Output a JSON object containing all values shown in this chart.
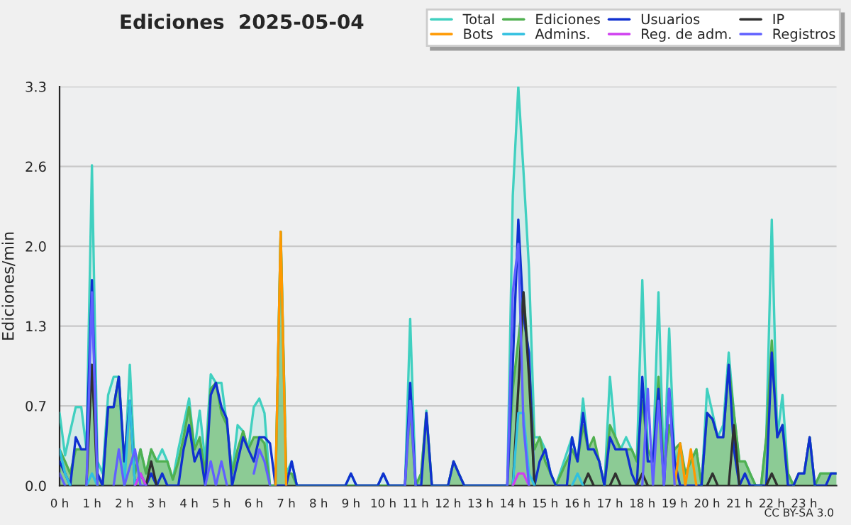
{
  "chart_data": {
    "type": "line",
    "title": "Ediciones  2025-05-04",
    "ylabel": "Ediciones/min",
    "xlim": [
      0,
      24
    ],
    "xticks": [
      {
        "value": 0,
        "label": "0 h"
      },
      {
        "value": 1,
        "label": "1 h"
      },
      {
        "value": 2,
        "label": "2 h"
      },
      {
        "value": 3,
        "label": "3 h"
      },
      {
        "value": 4,
        "label": "4 h"
      },
      {
        "value": 5,
        "label": "5 h"
      },
      {
        "value": 6,
        "label": "6 h"
      },
      {
        "value": 7,
        "label": "7 h"
      },
      {
        "value": 8,
        "label": "8 h"
      },
      {
        "value": 9,
        "label": "9 h"
      },
      {
        "value": 10,
        "label": "10 h"
      },
      {
        "value": 11,
        "label": "11 h"
      },
      {
        "value": 12,
        "label": "12 h"
      },
      {
        "value": 13,
        "label": "13 h"
      },
      {
        "value": 14,
        "label": "14 h"
      },
      {
        "value": 15,
        "label": "15 h"
      },
      {
        "value": 16,
        "label": "16 h"
      },
      {
        "value": 17,
        "label": "17 h"
      },
      {
        "value": 18,
        "label": "18 h"
      },
      {
        "value": 19,
        "label": "19 h"
      },
      {
        "value": 20,
        "label": "20 h"
      },
      {
        "value": 21,
        "label": "21 h"
      },
      {
        "value": 22,
        "label": "22 h"
      },
      {
        "value": 23,
        "label": "23 h"
      }
    ],
    "ylim": [
      0,
      3.3
    ],
    "yticks": [
      {
        "value": 0,
        "label": "0.0"
      },
      {
        "value": 0.66,
        "label": "0.7"
      },
      {
        "value": 1.32,
        "label": "1.3"
      },
      {
        "value": 1.98,
        "label": "2.0"
      },
      {
        "value": 2.64,
        "label": "2.6"
      },
      {
        "value": 3.3,
        "label": "3.3"
      }
    ],
    "grid": "y",
    "legend": "top right",
    "marker": "none",
    "line_style": "solid",
    "annotations": [
      "CC BY-SA 3.0"
    ],
    "series": [
      {
        "name": "Total",
        "type": "area",
        "color": "#40d0c0",
        "x": [
          0,
          0.17,
          0.33,
          0.5,
          0.67,
          0.83,
          1.0,
          1.17,
          1.33,
          1.5,
          1.67,
          1.83,
          2.0,
          2.17,
          2.33,
          2.5,
          2.67,
          2.83,
          3.0,
          3.17,
          3.33,
          3.5,
          3.67,
          3.83,
          4.0,
          4.17,
          4.33,
          4.5,
          4.67,
          4.83,
          5.0,
          5.17,
          5.33,
          5.5,
          5.67,
          5.83,
          6.0,
          6.17,
          6.33,
          6.5,
          6.67,
          6.83,
          7.0,
          7.17,
          7.33,
          8.83,
          9.0,
          9.17,
          9.83,
          10.0,
          10.17,
          10.67,
          10.83,
          11.0,
          11.17,
          11.33,
          11.5,
          12.0,
          12.17,
          12.33,
          12.5,
          13.83,
          14.0,
          14.17,
          14.33,
          14.5,
          14.67,
          14.83,
          15.0,
          15.17,
          15.33,
          15.83,
          16.0,
          16.17,
          16.33,
          16.5,
          16.67,
          16.83,
          17.0,
          17.17,
          17.33,
          17.5,
          17.67,
          17.83,
          18.0,
          18.17,
          18.33,
          18.5,
          18.67,
          18.83,
          19.0,
          19.17,
          19.33,
          19.5,
          19.67,
          19.83,
          20.0,
          20.17,
          20.33,
          20.5,
          20.67,
          20.83,
          21.0,
          21.17,
          21.33,
          21.5,
          21.67,
          21.83,
          22.0,
          22.17,
          22.33,
          22.5,
          22.67,
          22.83,
          23.0,
          23.17,
          23.33,
          23.5,
          23.83,
          24.0
        ],
        "values": [
          0.6,
          0.25,
          0.45,
          0.65,
          0.65,
          0.3,
          2.65,
          0.2,
          0.1,
          0.75,
          0.9,
          0.9,
          0.1,
          1.0,
          0.1,
          0.3,
          0.1,
          0.3,
          0.2,
          0.3,
          0.2,
          0.05,
          0.3,
          0.5,
          0.72,
          0.3,
          0.62,
          0.2,
          0.92,
          0.85,
          0.85,
          0.5,
          0.1,
          0.5,
          0.45,
          0.3,
          0.65,
          0.72,
          0.6,
          0,
          0,
          2.1,
          0.1,
          0.2,
          0,
          0,
          0.1,
          0,
          0,
          0.1,
          0,
          0,
          1.38,
          0,
          0.1,
          0.62,
          0,
          0,
          0.2,
          0.1,
          0,
          0,
          2.4,
          3.3,
          2.6,
          1.8,
          0.4,
          0.4,
          0.3,
          0.1,
          0,
          0.4,
          0.2,
          0.72,
          0.3,
          0.3,
          0.2,
          0,
          0.9,
          0.4,
          0.3,
          0.4,
          0.3,
          0.2,
          1.7,
          0.3,
          0.2,
          1.6,
          0.1,
          1.3,
          0.2,
          0.3,
          0.1,
          0.2,
          0.3,
          0,
          0.8,
          0.6,
          0.4,
          0.5,
          1.1,
          0.6,
          0.2,
          0.2,
          0.1,
          0,
          0,
          0.4,
          2.2,
          0.4,
          0.75,
          0.1,
          0,
          0.1,
          0.1,
          0.4,
          0,
          0.1,
          0.1,
          0.1
        ]
      },
      {
        "name": "Ediciones",
        "type": "area",
        "color": "#50b050",
        "x": [
          0,
          0.17,
          0.33,
          0.5,
          0.67,
          0.83,
          1.0,
          1.17,
          1.33,
          1.5,
          1.67,
          1.83,
          2.0,
          2.17,
          2.33,
          2.5,
          2.67,
          2.83,
          3.0,
          3.17,
          3.33,
          3.5,
          3.67,
          3.83,
          4.0,
          4.17,
          4.33,
          4.5,
          4.67,
          4.83,
          5.0,
          5.17,
          5.33,
          5.5,
          5.67,
          5.83,
          6.0,
          6.17,
          6.33,
          6.5,
          6.67,
          6.83,
          7.0,
          7.17,
          7.33,
          10.67,
          10.83,
          11.0,
          11.17,
          11.33,
          11.5,
          12.0,
          12.17,
          12.33,
          12.5,
          13.83,
          14.0,
          14.17,
          14.33,
          14.5,
          14.67,
          14.83,
          15.0,
          15.17,
          15.33,
          15.83,
          16.0,
          16.17,
          16.33,
          16.5,
          16.67,
          16.83,
          17.0,
          17.17,
          17.33,
          17.5,
          17.67,
          17.83,
          18.0,
          18.17,
          18.33,
          18.5,
          18.67,
          18.83,
          19.0,
          19.17,
          19.33,
          19.5,
          19.67,
          19.83,
          20.0,
          20.17,
          20.33,
          20.5,
          20.67,
          20.83,
          21.0,
          21.17,
          21.33,
          21.5,
          21.67,
          21.83,
          22.0,
          22.17,
          22.33,
          22.5,
          22.67,
          22.83,
          23.0,
          23.17,
          23.33,
          23.5,
          23.83,
          24.0
        ],
        "values": [
          0.3,
          0.2,
          0.1,
          0.3,
          0.3,
          0.3,
          1.0,
          0.1,
          0,
          0.65,
          0.65,
          0.9,
          0.2,
          0.7,
          0.1,
          0.3,
          0.1,
          0.3,
          0.2,
          0.2,
          0.2,
          0.05,
          0.2,
          0.4,
          0.65,
          0.3,
          0.4,
          0.1,
          0.8,
          0.85,
          0.6,
          0.5,
          0.1,
          0.3,
          0.45,
          0.3,
          0.4,
          0.4,
          0.35,
          0,
          0,
          2.1,
          0.1,
          0.1,
          0,
          0,
          0.65,
          0,
          0.1,
          0.6,
          0,
          0,
          0.2,
          0.1,
          0,
          0,
          0.8,
          1.2,
          1.6,
          1.0,
          0.3,
          0.4,
          0.2,
          0.1,
          0,
          0.3,
          0.2,
          0.5,
          0.3,
          0.4,
          0.2,
          0,
          0.5,
          0.4,
          0.3,
          0.3,
          0.3,
          0.2,
          0.7,
          0.3,
          0.2,
          0.9,
          0.1,
          0.5,
          0.3,
          0.35,
          0.1,
          0.2,
          0.3,
          0,
          0.6,
          0.55,
          0.4,
          0.4,
          1.0,
          0.6,
          0.2,
          0.2,
          0.1,
          0,
          0,
          0.4,
          1.2,
          0.4,
          0.5,
          0.1,
          0,
          0.1,
          0.1,
          0.4,
          0,
          0.1,
          0.1,
          0.1
        ]
      },
      {
        "name": "Usuarios",
        "color": "#1030d0",
        "x": [
          0,
          0.17,
          0.33,
          0.5,
          0.67,
          0.83,
          1.0,
          1.17,
          1.33,
          1.5,
          1.67,
          1.83,
          2.0,
          2.17,
          2.33,
          2.5,
          2.67,
          2.83,
          3.0,
          3.17,
          3.33,
          3.67,
          3.83,
          4.0,
          4.17,
          4.33,
          4.5,
          4.67,
          4.83,
          5.0,
          5.17,
          5.33,
          5.5,
          5.67,
          5.83,
          6.0,
          6.17,
          6.33,
          6.5,
          6.67,
          7.0,
          7.17,
          7.33,
          8.83,
          9.0,
          9.17,
          9.83,
          10.0,
          10.17,
          10.67,
          10.83,
          11.0,
          11.17,
          11.33,
          11.5,
          12.0,
          12.17,
          12.33,
          12.5,
          13.83,
          14.0,
          14.17,
          14.33,
          14.5,
          14.67,
          14.83,
          15.0,
          15.17,
          15.33,
          15.67,
          15.83,
          16.0,
          16.17,
          16.33,
          16.5,
          16.67,
          16.83,
          17.0,
          17.17,
          17.33,
          17.5,
          17.67,
          17.83,
          18.0,
          18.17,
          18.33,
          18.5,
          18.67,
          18.83,
          19.0,
          19.17,
          19.83,
          20.0,
          20.17,
          20.33,
          20.5,
          20.67,
          20.83,
          21.0,
          21.17,
          21.33,
          21.67,
          21.83,
          22.0,
          22.17,
          22.33,
          22.5,
          22.67,
          22.83,
          23.0,
          23.17,
          23.33,
          23.67,
          23.83,
          24.0
        ],
        "values": [
          0.2,
          0.1,
          0,
          0.4,
          0.3,
          0.3,
          1.7,
          0.1,
          0,
          0.65,
          0.65,
          0.9,
          0.2,
          0.7,
          0,
          0.1,
          0,
          0.1,
          0,
          0.1,
          0,
          0,
          0.3,
          0.5,
          0.2,
          0.3,
          0,
          0.75,
          0.85,
          0.65,
          0.55,
          0,
          0.2,
          0.4,
          0.3,
          0.2,
          0.4,
          0.4,
          0.35,
          0,
          0,
          0.2,
          0,
          0,
          0.1,
          0,
          0,
          0.1,
          0,
          0,
          0.85,
          0,
          0,
          0.6,
          0,
          0,
          0.2,
          0.1,
          0,
          0,
          1.0,
          2.2,
          1.4,
          1.1,
          0,
          0.2,
          0.3,
          0.1,
          0,
          0,
          0.4,
          0.2,
          0.6,
          0.3,
          0.3,
          0.2,
          0,
          0.4,
          0.3,
          0.3,
          0.3,
          0.1,
          0,
          0.9,
          0.2,
          0.2,
          0.8,
          0,
          0.8,
          0.2,
          0,
          0,
          0.6,
          0.55,
          0.4,
          0.4,
          1.0,
          0.3,
          0,
          0.1,
          0,
          0,
          0,
          1.1,
          0.4,
          0.5,
          0,
          0,
          0.1,
          0.1,
          0.4,
          0,
          0,
          0.1,
          0.1
        ]
      },
      {
        "name": "IP",
        "color": "#303030",
        "x": [
          0.83,
          1.0,
          1.17,
          2,
          2.67,
          2.83,
          3.0,
          8,
          14.0,
          14.17,
          14.33,
          14.5,
          14.67,
          15,
          16.17,
          16.33,
          16.5,
          16.8,
          17.0,
          17.17,
          17.33,
          17.6,
          17.83,
          18.0,
          18.17,
          19,
          20.0,
          20.17,
          20.33,
          20.5,
          20.67,
          20.83,
          21.0,
          21.5,
          21.83,
          22.0,
          22.17
        ],
        "values": [
          0,
          1.0,
          0,
          null,
          0,
          0.2,
          0,
          null,
          0,
          0.8,
          1.6,
          0.9,
          0,
          null,
          0,
          0.1,
          0,
          null,
          0,
          0.1,
          0,
          null,
          0,
          0.1,
          0,
          null,
          0,
          0.1,
          0,
          null,
          0,
          0.5,
          0,
          null,
          0,
          0.1,
          0
        ]
      },
      {
        "name": "Bots",
        "color": "#ff9900",
        "x": [
          6.67,
          6.83,
          7.0,
          12,
          19.0,
          19.17,
          19.33,
          19.5,
          19.67
        ],
        "values": [
          0,
          2.1,
          0,
          null,
          0,
          0.35,
          0,
          0.3,
          0
        ]
      },
      {
        "name": "Admins.",
        "color": "#30c0e0",
        "x": [
          0,
          0.17,
          0.33,
          0.6,
          0.83,
          1.0,
          1.17,
          1.6,
          2.0,
          2.17,
          2.33,
          8,
          14.0,
          14.17,
          14.33,
          14.5,
          14.67,
          15,
          15.83,
          16.0,
          16.17
        ],
        "values": [
          0.3,
          0.1,
          0,
          null,
          0,
          0.1,
          0,
          null,
          0,
          0.7,
          0,
          null,
          0,
          0.6,
          0.6,
          0.1,
          0,
          null,
          0,
          0.1,
          0
        ]
      },
      {
        "name": "Reg. de adm.",
        "color": "#d040f0",
        "x": [
          2.33,
          2.5,
          2.67,
          8,
          14.0,
          14.17,
          14.33,
          14.5
        ],
        "values": [
          0,
          0.1,
          0,
          null,
          0,
          0.1,
          0.1,
          0
        ]
      },
      {
        "name": "Registros",
        "color": "#6060ff",
        "x": [
          0,
          0.17,
          0.5,
          0.83,
          1.0,
          1.17,
          1.4,
          1.67,
          1.83,
          2.0,
          2.33,
          2.5,
          2.67,
          4,
          4.5,
          4.67,
          4.83,
          5.0,
          5.17,
          5.5,
          6.0,
          6.17,
          6.33,
          6.5,
          8,
          10.67,
          10.83,
          11.0,
          12,
          13.83,
          14.0,
          14.17,
          14.33,
          14.5,
          16,
          18.0,
          18.17,
          18.33,
          18.5,
          18.67,
          18.83,
          19.0
        ],
        "values": [
          0.1,
          0,
          null,
          0,
          1.6,
          0,
          null,
          0,
          0.3,
          0,
          0.3,
          0,
          0,
          null,
          0,
          0.2,
          0,
          0.2,
          0,
          null,
          0.1,
          0.3,
          0.2,
          0,
          null,
          0,
          0.7,
          0,
          null,
          0,
          1.6,
          2.0,
          0.5,
          0,
          null,
          0,
          0.8,
          0,
          0.7,
          0,
          0.8,
          0
        ]
      }
    ]
  }
}
